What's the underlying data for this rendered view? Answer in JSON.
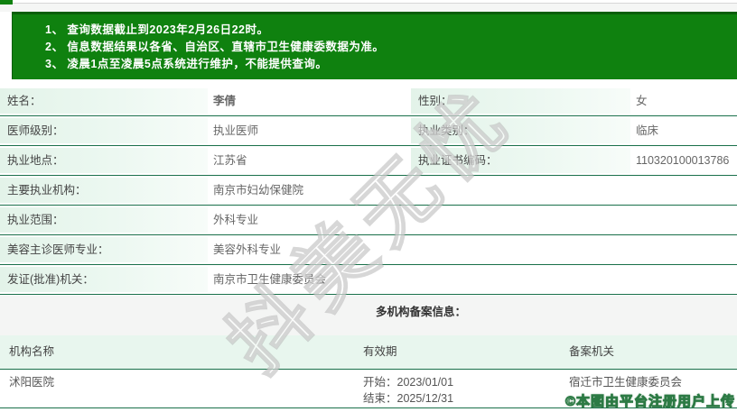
{
  "colors": {
    "notice_green": "#0f810f",
    "notice_border": "#0a5e0a",
    "row_separator": "#19704a",
    "label_cell_bg": "#e3f3e9",
    "header_row_bg": "#e8f6ee",
    "section_bg": "#f4f5f4"
  },
  "notice": {
    "lines": [
      "1、 查询数据截止到2023年2月26日22时。",
      "2、 信息数据结果以各省、自治区、直辖市卫生健康委数据为准。",
      "3、 凌晨1点至凌晨5点系统进行维护，不能提供查询。"
    ]
  },
  "doctor": {
    "rows": [
      {
        "cells": [
          {
            "label": "姓名：",
            "value": "李倩"
          },
          {
            "label": "性别：",
            "value": "女"
          }
        ]
      },
      {
        "cells": [
          {
            "label": "医师级别：",
            "value": "执业医师"
          },
          {
            "label": "执业类别：",
            "value": "临床"
          }
        ]
      },
      {
        "cells": [
          {
            "label": "执业地点：",
            "value": "江苏省"
          },
          {
            "label": "执业证书编码：",
            "value": "110320100013786"
          }
        ]
      },
      {
        "cells": [
          {
            "label": "主要执业机构：",
            "value": "南京市妇幼保健院"
          }
        ]
      },
      {
        "cells": [
          {
            "label": "执业范围：",
            "value": "外科专业"
          }
        ]
      },
      {
        "cells": [
          {
            "label": "美容主诊医师专业：",
            "value": "美容外科专业"
          }
        ]
      },
      {
        "cells": [
          {
            "label": "发证(批准)机关：",
            "value": "南京市卫生健康委员会"
          }
        ]
      }
    ]
  },
  "multi_org": {
    "section_title": "多机构备案信息：",
    "headers": {
      "org_name": "机构名称",
      "validity": "有效期",
      "filing_authority": "备案机关"
    },
    "records": [
      {
        "org_name": "沭阳医院",
        "validity_start": "开始：2023/01/01",
        "validity_end": "结束：2025/12/31",
        "filing_authority": "宿迁市卫生健康委员会"
      }
    ]
  },
  "watermarks": {
    "diagonal": "抖美无忧",
    "bottom_right": "©本图由平台注册用户上传"
  }
}
